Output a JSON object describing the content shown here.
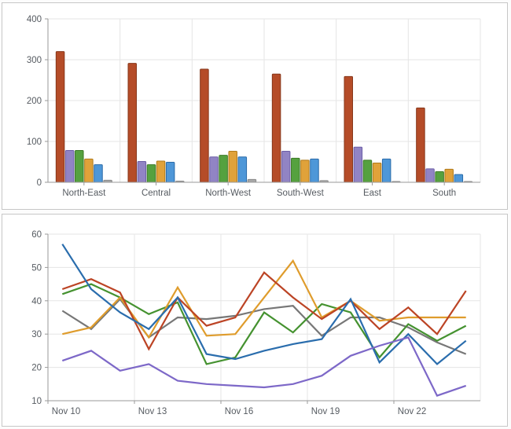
{
  "page": {
    "background": "#fcfcfc",
    "panel_border": "#c7c7c7",
    "grid_color": "#e5e5e5",
    "axis_color": "#9a9a9a",
    "label_color": "#565b61"
  },
  "chart_data": [
    {
      "type": "bar",
      "title": "",
      "xlabel": "",
      "ylabel": "",
      "grid": true,
      "legend": "none",
      "categories": [
        "North-East",
        "Central",
        "North-West",
        "South-West",
        "East",
        "South"
      ],
      "y_axis": {
        "min": 0,
        "max": 400,
        "ticks": [
          0,
          100,
          200,
          300,
          400
        ]
      },
      "series": [
        {
          "name": "red",
          "color": "#b54c28",
          "border": "#87371a",
          "values": [
            320,
            291,
            277,
            265,
            259,
            182
          ]
        },
        {
          "name": "purple",
          "color": "#9184c4",
          "border": "#6c5ea6",
          "values": [
            78,
            51,
            62,
            76,
            86,
            33
          ]
        },
        {
          "name": "green",
          "color": "#55a13f",
          "border": "#3c7a26",
          "values": [
            78,
            43,
            66,
            59,
            54,
            26
          ]
        },
        {
          "name": "orange",
          "color": "#e0a23a",
          "border": "#b07a1a",
          "values": [
            57,
            52,
            76,
            54,
            47,
            32
          ]
        },
        {
          "name": "blue",
          "color": "#4e97d8",
          "border": "#2b6ba8",
          "values": [
            43,
            49,
            62,
            57,
            57,
            19
          ]
        },
        {
          "name": "gray",
          "color": "#a7a7a7",
          "border": "#8a8a8a",
          "values": [
            5,
            3,
            7,
            4,
            2,
            2
          ]
        }
      ]
    },
    {
      "type": "line",
      "title": "",
      "xlabel": "",
      "ylabel": "",
      "grid": true,
      "legend": "none",
      "x": [
        "Nov 10",
        "Nov 11",
        "Nov 12",
        "Nov 13",
        "Nov 14",
        "Nov 15",
        "Nov 16",
        "Nov 17",
        "Nov 18",
        "Nov 19",
        "Nov 20",
        "Nov 21",
        "Nov 22",
        "Nov 23",
        "Nov 24"
      ],
      "x_ticks": [
        {
          "at": 0,
          "label": "Nov 10"
        },
        {
          "at": 3,
          "label": "Nov 13"
        },
        {
          "at": 6,
          "label": "Nov 16"
        },
        {
          "at": 9,
          "label": "Nov 19"
        },
        {
          "at": 12,
          "label": "Nov 22"
        }
      ],
      "y_axis": {
        "min": 10,
        "max": 60,
        "ticks": [
          10,
          20,
          30,
          40,
          50,
          60
        ]
      },
      "series": [
        {
          "name": "gray",
          "color": "#777777",
          "values": [
            37,
            31.5,
            40.5,
            29,
            35,
            34.5,
            35.5,
            37.5,
            38.5,
            29.5,
            35,
            35,
            32,
            27.5,
            24
          ]
        },
        {
          "name": "green",
          "color": "#459230",
          "values": [
            42,
            45,
            41,
            36,
            39.5,
            21,
            23,
            36.5,
            30.5,
            39,
            36.5,
            23,
            33,
            28,
            32.5
          ]
        },
        {
          "name": "orange",
          "color": "#df9c2c",
          "values": [
            30,
            32,
            41,
            29,
            44,
            29.5,
            30,
            41,
            52,
            35,
            40,
            34,
            35,
            35,
            35
          ]
        },
        {
          "name": "red",
          "color": "#bc4425",
          "values": [
            43.5,
            46.5,
            42.5,
            25.5,
            41,
            32.5,
            35,
            48.5,
            41,
            34.5,
            40,
            31.5,
            38,
            30,
            43
          ]
        },
        {
          "name": "blue",
          "color": "#2a6dad",
          "values": [
            57,
            43.5,
            36.5,
            31.5,
            41,
            24,
            22.5,
            25,
            27,
            28.5,
            40.5,
            21.5,
            30,
            21,
            28
          ]
        },
        {
          "name": "purple",
          "color": "#7d68c8",
          "values": [
            22,
            25,
            19,
            21,
            16,
            15,
            14.5,
            14,
            15,
            17.5,
            23.5,
            26.5,
            29,
            11.5,
            14.5
          ]
        }
      ]
    }
  ]
}
